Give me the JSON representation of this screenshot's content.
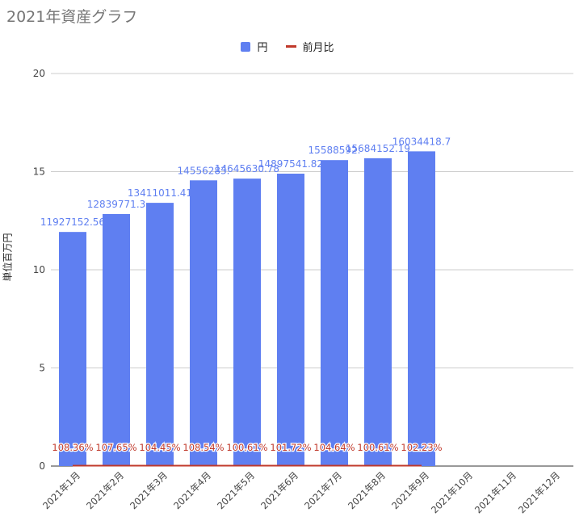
{
  "chart_data": {
    "type": "bar",
    "title": "2021年資産グラフ",
    "ylabel": "単位百万円",
    "xlabel": "",
    "ylim": [
      0,
      20
    ],
    "yticks": [
      0,
      5,
      10,
      15,
      20
    ],
    "grid": true,
    "legend_position": "top",
    "categories": [
      "2021年1月",
      "2021年2月",
      "2021年3月",
      "2021年4月",
      "2021年5月",
      "2021年6月",
      "2021年7月",
      "2021年8月",
      "2021年9月",
      "2021年10月",
      "2021年11月",
      "2021年12月"
    ],
    "series": [
      {
        "name": "円",
        "type": "bar",
        "color": "#5f7ff1",
        "values": [
          11.92715256,
          12.8397713,
          13.41101141,
          14.556283,
          14.64563078,
          14.89754182,
          15.588592,
          15.68415219,
          16.0344187,
          null,
          null,
          null
        ],
        "labels": [
          "11927152.56",
          "12839771.3",
          "13411011.41",
          "14556283.",
          "14645630.78",
          "14897541.82",
          "15588592.",
          "15684152.19",
          "16034418.7",
          "",
          "",
          ""
        ]
      },
      {
        "name": "前月比",
        "type": "line",
        "color": "#c0392b",
        "values": [
          1.0836,
          1.0765,
          1.0445,
          1.0854,
          1.0061,
          1.0172,
          1.0464,
          1.0061,
          1.0223,
          null,
          null,
          null
        ],
        "labels": [
          "108.36%",
          "107.65%",
          "104.45%",
          "108.54%",
          "100.61%",
          "101.72%",
          "104.64%",
          "100.61%",
          "102.23%",
          "",
          "",
          ""
        ]
      }
    ]
  }
}
